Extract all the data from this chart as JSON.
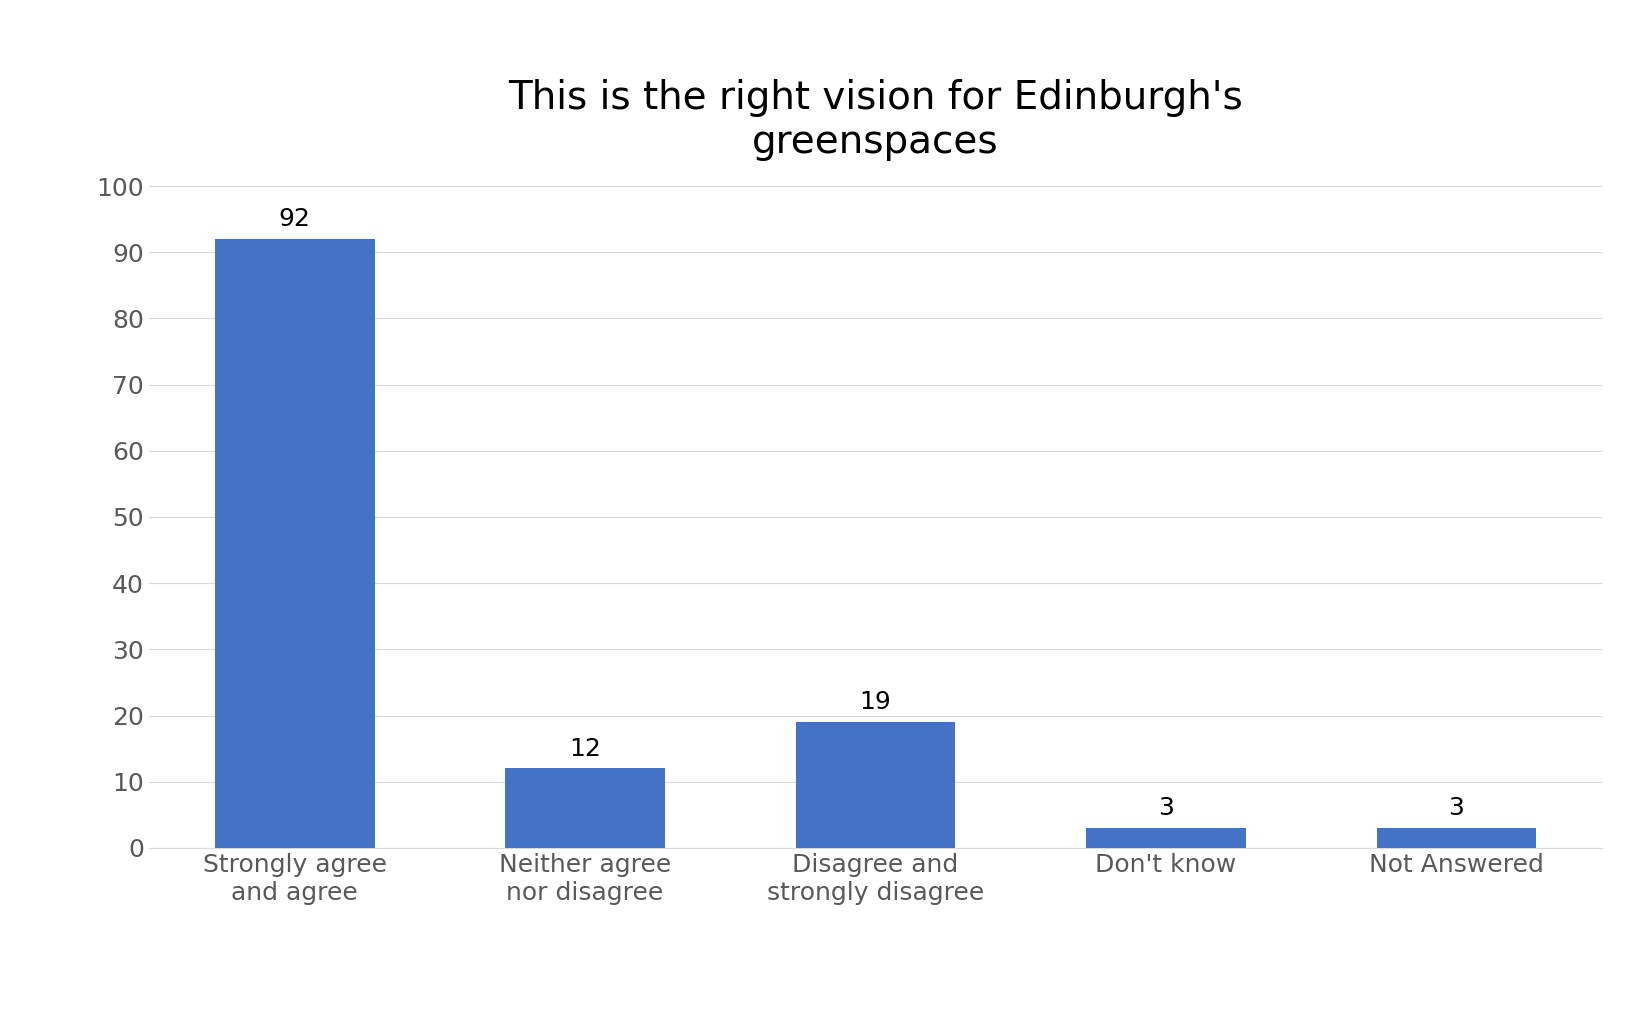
{
  "title": "This is the right vision for Edinburgh's\ngreenspaces",
  "categories": [
    "Strongly agree\nand agree",
    "Neither agree\nnor disagree",
    "Disagree and\nstrongly disagree",
    "Don't know",
    "Not Answered"
  ],
  "values": [
    92,
    12,
    19,
    3,
    3
  ],
  "bar_color": "#4472C4",
  "ylim": [
    0,
    100
  ],
  "yticks": [
    0,
    10,
    20,
    30,
    40,
    50,
    60,
    70,
    80,
    90,
    100
  ],
  "title_fontsize": 28,
  "tick_fontsize": 18,
  "label_fontsize": 18,
  "tick_color": "#595959",
  "background_color": "#ffffff",
  "grid_color": "#d9d9d9"
}
